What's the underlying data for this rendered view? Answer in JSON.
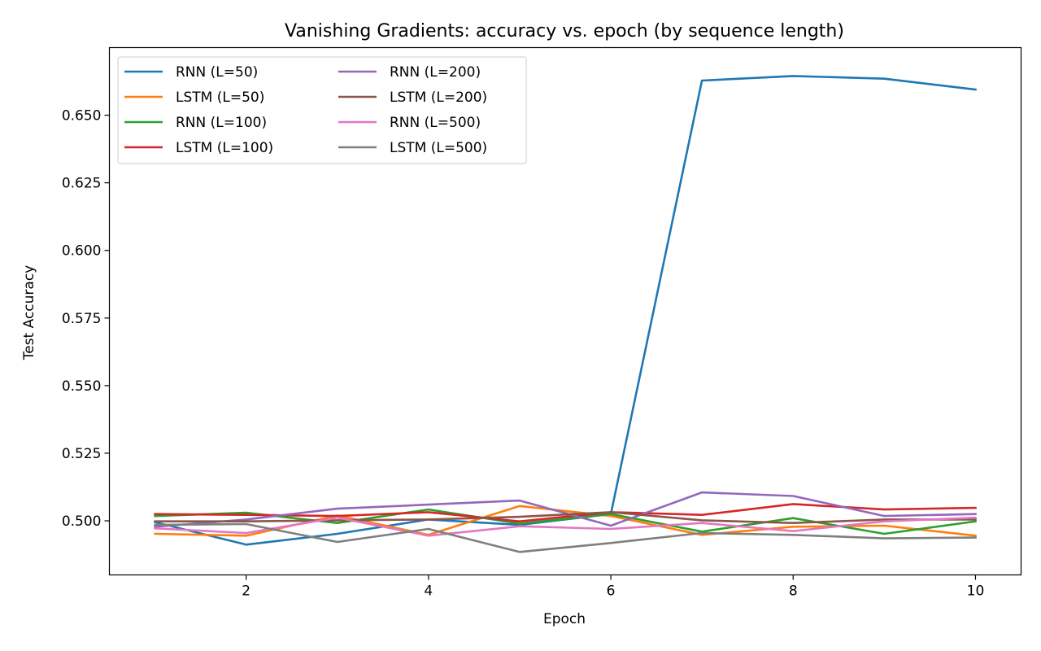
{
  "chart_data": {
    "type": "line",
    "title": "Vanishing Gradients: accuracy vs. epoch (by sequence length)",
    "xlabel": "Epoch",
    "ylabel": "Test Accuracy",
    "xlim": [
      0.5,
      10.5
    ],
    "ylim": [
      0.48,
      0.675
    ],
    "xticks": [
      2,
      4,
      6,
      8,
      10
    ],
    "yticks": [
      0.5,
      0.525,
      0.55,
      0.575,
      0.6,
      0.625,
      0.65
    ],
    "ytick_labels": [
      "0.500",
      "0.525",
      "0.550",
      "0.575",
      "0.600",
      "0.625",
      "0.650"
    ],
    "grid": false,
    "legend_placement": "upper-left",
    "legend_columns": 2,
    "x": [
      1,
      2,
      3,
      4,
      5,
      6,
      7,
      8,
      9,
      10
    ],
    "series": [
      {
        "name": "RNN (L=50)",
        "color": "#1f77b4",
        "values": [
          0.4995,
          0.4912,
          0.4952,
          0.5005,
          0.4985,
          0.5025,
          0.6628,
          0.6645,
          0.6635,
          0.6595
        ]
      },
      {
        "name": "LSTM (L=50)",
        "color": "#ff7f0e",
        "values": [
          0.4952,
          0.4945,
          0.502,
          0.4948,
          0.5055,
          0.5018,
          0.4948,
          0.4978,
          0.4982,
          0.4945
        ]
      },
      {
        "name": "RNN (L=100)",
        "color": "#2ca02c",
        "values": [
          0.5018,
          0.503,
          0.4992,
          0.5042,
          0.499,
          0.5025,
          0.496,
          0.501,
          0.4952,
          0.4998
        ]
      },
      {
        "name": "LSTM (L=100)",
        "color": "#d62728",
        "values": [
          0.5025,
          0.5022,
          0.5018,
          0.5032,
          0.4998,
          0.5032,
          0.5022,
          0.5062,
          0.5042,
          0.5048
        ]
      },
      {
        "name": "RNN (L=200)",
        "color": "#9467bd",
        "values": [
          0.4978,
          0.5005,
          0.5045,
          0.506,
          0.5075,
          0.4982,
          0.5105,
          0.5092,
          0.5018,
          0.5025
        ]
      },
      {
        "name": "LSTM (L=200)",
        "color": "#8c564b",
        "values": [
          0.4998,
          0.4998,
          0.5002,
          0.5005,
          0.5015,
          0.5032,
          0.5002,
          0.4992,
          0.5005,
          0.5005
        ]
      },
      {
        "name": "RNN (L=500)",
        "color": "#e377c2",
        "values": [
          0.4972,
          0.4955,
          0.5012,
          0.4945,
          0.498,
          0.497,
          0.4992,
          0.4962,
          0.4998,
          0.5012
        ]
      },
      {
        "name": "LSTM (L=500)",
        "color": "#7f7f7f",
        "values": [
          0.4985,
          0.4988,
          0.4922,
          0.497,
          0.4885,
          0.4918,
          0.4955,
          0.4948,
          0.4935,
          0.4938
        ]
      }
    ]
  }
}
